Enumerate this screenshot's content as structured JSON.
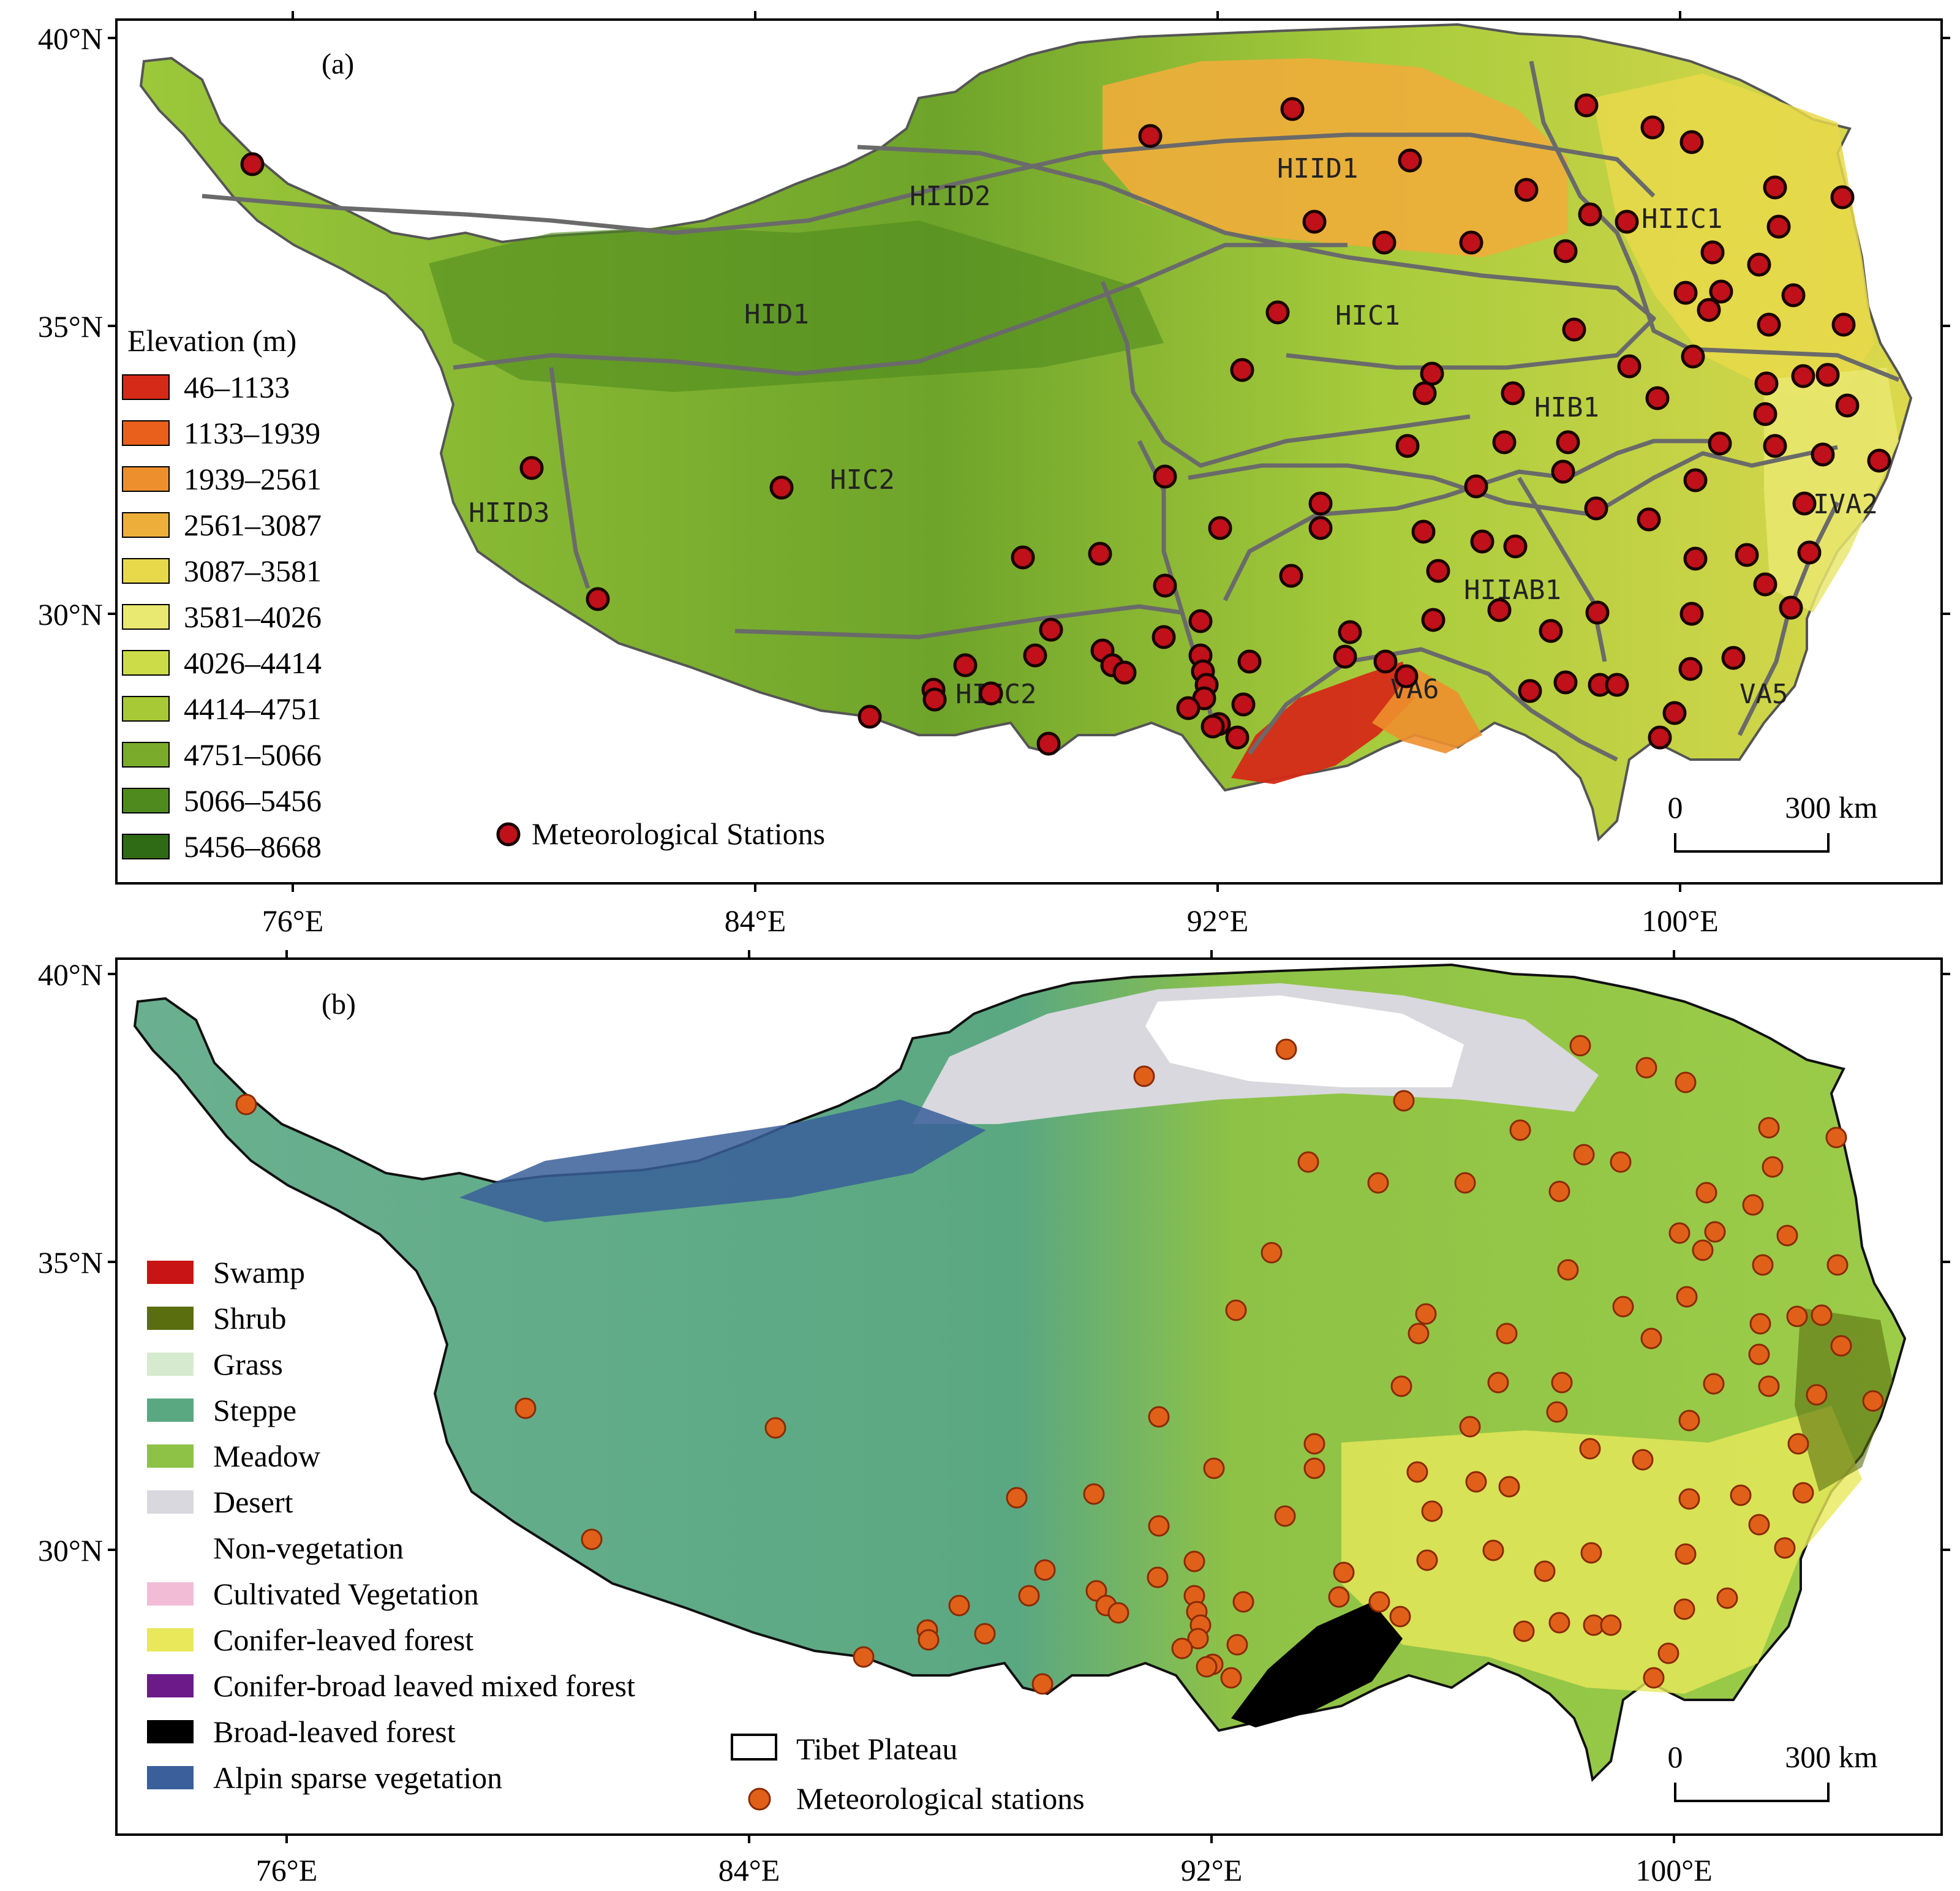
{
  "colors": {
    "plateau_base_a": "#8fbf3a",
    "plateau_dark_a": "#4f8a1e",
    "plateau_light_a": "#d6d84a",
    "boundary_line": "#6a6a6a",
    "station_red": "#c0101a",
    "station_orange": "#e0601a",
    "steppe": "#5aa882",
    "meadow": "#8ec246",
    "desert": "#d8d8de",
    "frame": "#000000"
  },
  "panel_a": {
    "label": "(a)",
    "lat_labels": [
      "40°N",
      "35°N",
      "30°N"
    ],
    "lon_labels": [
      "76°E",
      "84°E",
      "92°E",
      "100°E"
    ],
    "legend_title": "Elevation (m)",
    "legend": [
      {
        "label": "46–1133",
        "color": "#d42a17"
      },
      {
        "label": "1133–1939",
        "color": "#e8601c"
      },
      {
        "label": "1939–2561",
        "color": "#ee8f2d"
      },
      {
        "label": "2561–3087",
        "color": "#eeae3a"
      },
      {
        "label": "3087–3581",
        "color": "#e7d94a"
      },
      {
        "label": "3581–4026",
        "color": "#e9e870"
      },
      {
        "label": "4026–4414",
        "color": "#cbdc48"
      },
      {
        "label": "4414–4751",
        "color": "#a7c935"
      },
      {
        "label": "4751–5066",
        "color": "#7aab2a"
      },
      {
        "label": "5066–5456",
        "color": "#4f8a1e"
      },
      {
        "label": "5456–8668",
        "color": "#2f6a14"
      }
    ],
    "stations_legend": "Meteorological Stations",
    "regions": [
      "HIID1",
      "HIID2",
      "HIIC1",
      "HID1",
      "HIC1",
      "HIB1",
      "HIC2",
      "HIID3",
      "IVA2",
      "HIIAB1",
      "HIIC2",
      "VA6",
      "VA5"
    ],
    "scale_labels": [
      "0",
      "300 km"
    ]
  },
  "panel_b": {
    "label": "(b)",
    "lat_labels": [
      "40°N",
      "35°N",
      "30°N"
    ],
    "lon_labels": [
      "76°E",
      "84°E",
      "92°E",
      "100°E"
    ],
    "legend": [
      {
        "label": "Swamp",
        "color": "#c81414"
      },
      {
        "label": "Shrub",
        "color": "#5a6e10"
      },
      {
        "label": "Grass",
        "color": "#d6ead0"
      },
      {
        "label": "Steppe",
        "color": "#5aa882"
      },
      {
        "label": "Meadow",
        "color": "#8ec246"
      },
      {
        "label": "Desert",
        "color": "#d8d8de"
      },
      {
        "label": "Non-vegetation",
        "color": "#ffffff"
      },
      {
        "label": "Cultivated Vegetation",
        "color": "#f2bcd6"
      },
      {
        "label": "Conifer-leaved forest",
        "color": "#e8e85a"
      },
      {
        "label": "Conifer-broad leaved mixed forest",
        "color": "#6c1a8a"
      },
      {
        "label": "Broad-leaved forest",
        "color": "#000000"
      },
      {
        "label": "Alpin sparse vegetation",
        "color": "#3a5f9a"
      }
    ],
    "plateau_legend": "Tibet Plateau",
    "stations_legend": "Meteorological stations",
    "scale_labels": [
      "0",
      "300 km"
    ]
  }
}
